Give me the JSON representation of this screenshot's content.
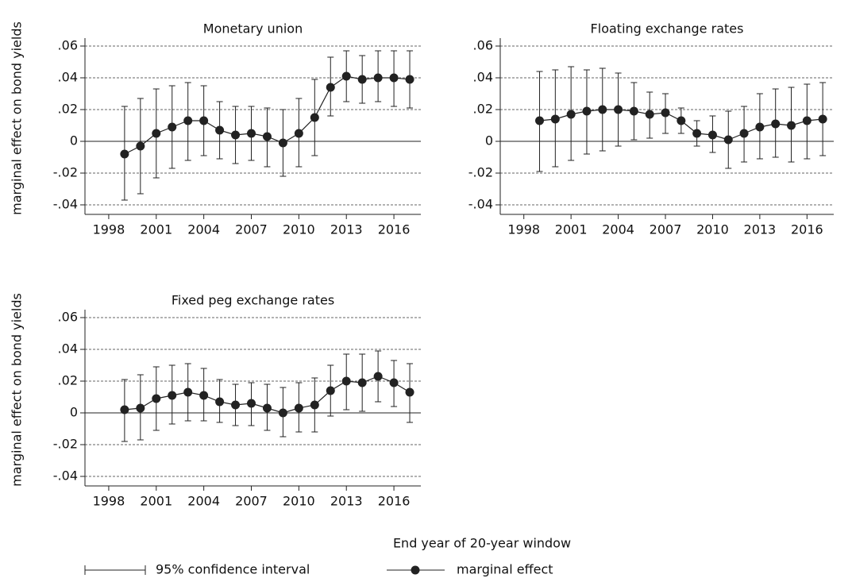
{
  "chart_data": [
    {
      "type": "errorbar",
      "title": "Monetary union",
      "ylabel": "marginal effect on bond yields",
      "color": "#222222",
      "x": [
        1999,
        2000,
        2001,
        2002,
        2003,
        2004,
        2005,
        2006,
        2007,
        2008,
        2009,
        2010,
        2011,
        2012,
        2013,
        2014,
        2015,
        2016,
        2017
      ],
      "values": [
        -0.008,
        -0.003,
        0.005,
        0.009,
        0.013,
        0.013,
        0.007,
        0.004,
        0.005,
        0.003,
        -0.001,
        0.005,
        0.015,
        0.034,
        0.041,
        0.039,
        0.04,
        0.04,
        0.039
      ],
      "upper": [
        0.022,
        0.027,
        0.033,
        0.035,
        0.037,
        0.035,
        0.025,
        0.022,
        0.022,
        0.021,
        0.02,
        0.027,
        0.039,
        0.053,
        0.057,
        0.054,
        0.057,
        0.057,
        0.057
      ],
      "lower": [
        -0.037,
        -0.033,
        -0.023,
        -0.017,
        -0.012,
        -0.009,
        -0.011,
        -0.014,
        -0.012,
        -0.016,
        -0.022,
        -0.016,
        -0.009,
        0.016,
        0.025,
        0.024,
        0.025,
        0.022,
        0.021
      ],
      "xlim": [
        1996.5,
        2017.7
      ],
      "ylim": [
        -0.046,
        0.065
      ],
      "xticks": [
        1998,
        2001,
        2004,
        2007,
        2010,
        2013,
        2016
      ],
      "yticks": [
        {
          "value": 0.06,
          "label": ".06"
        },
        {
          "value": 0.04,
          "label": ".04"
        },
        {
          "value": 0.02,
          "label": ".02"
        },
        0,
        {
          "value": -0.02,
          "label": "-.02"
        },
        {
          "value": -0.04,
          "label": "-.04"
        }
      ],
      "grid": true,
      "refline": 0
    },
    {
      "type": "errorbar",
      "title": "Floating exchange rates",
      "color": "#222222",
      "x": [
        1999,
        2000,
        2001,
        2002,
        2003,
        2004,
        2005,
        2006,
        2007,
        2008,
        2009,
        2010,
        2011,
        2012,
        2013,
        2014,
        2015,
        2016,
        2017
      ],
      "values": [
        0.013,
        0.014,
        0.017,
        0.019,
        0.02,
        0.02,
        0.019,
        0.017,
        0.018,
        0.013,
        0.005,
        0.004,
        0.001,
        0.005,
        0.009,
        0.011,
        0.01,
        0.013,
        0.014
      ],
      "upper": [
        0.044,
        0.045,
        0.047,
        0.045,
        0.046,
        0.043,
        0.037,
        0.031,
        0.03,
        0.021,
        0.013,
        0.016,
        0.019,
        0.022,
        0.03,
        0.033,
        0.034,
        0.036,
        0.037
      ],
      "lower": [
        -0.019,
        -0.016,
        -0.012,
        -0.008,
        -0.006,
        -0.003,
        0.001,
        0.002,
        0.005,
        0.005,
        -0.003,
        -0.007,
        -0.017,
        -0.013,
        -0.011,
        -0.01,
        -0.013,
        -0.011,
        -0.009
      ],
      "xlim": [
        1996.5,
        2017.7
      ],
      "ylim": [
        -0.046,
        0.065
      ],
      "xticks": [
        1998,
        2001,
        2004,
        2007,
        2010,
        2013,
        2016
      ],
      "yticks": [
        {
          "value": 0.06,
          "label": ".06"
        },
        {
          "value": 0.04,
          "label": ".04"
        },
        {
          "value": 0.02,
          "label": ".02"
        },
        0,
        {
          "value": -0.02,
          "label": "-.02"
        },
        {
          "value": -0.04,
          "label": "-.04"
        }
      ],
      "grid": true,
      "refline": 0
    },
    {
      "type": "errorbar",
      "title": "Fixed peg exchange rates",
      "ylabel": "marginal effect on bond yields",
      "color": "#222222",
      "x": [
        1999,
        2000,
        2001,
        2002,
        2003,
        2004,
        2005,
        2006,
        2007,
        2008,
        2009,
        2010,
        2011,
        2012,
        2013,
        2014,
        2015,
        2016,
        2017
      ],
      "values": [
        0.002,
        0.003,
        0.009,
        0.011,
        0.013,
        0.011,
        0.007,
        0.005,
        0.006,
        0.003,
        0.0,
        0.003,
        0.005,
        0.014,
        0.02,
        0.019,
        0.023,
        0.019,
        0.013
      ],
      "upper": [
        0.021,
        0.024,
        0.029,
        0.03,
        0.031,
        0.028,
        0.021,
        0.018,
        0.019,
        0.018,
        0.016,
        0.019,
        0.022,
        0.03,
        0.037,
        0.037,
        0.039,
        0.033,
        0.031
      ],
      "lower": [
        -0.018,
        -0.017,
        -0.011,
        -0.007,
        -0.005,
        -0.005,
        -0.006,
        -0.008,
        -0.008,
        -0.011,
        -0.015,
        -0.012,
        -0.012,
        -0.002,
        0.002,
        0.001,
        0.007,
        0.004,
        -0.006
      ],
      "xlim": [
        1996.5,
        2017.7
      ],
      "ylim": [
        -0.046,
        0.065
      ],
      "xticks": [
        1998,
        2001,
        2004,
        2007,
        2010,
        2013,
        2016
      ],
      "yticks": [
        {
          "value": 0.06,
          "label": ".06"
        },
        {
          "value": 0.04,
          "label": ".04"
        },
        {
          "value": 0.02,
          "label": ".02"
        },
        0,
        {
          "value": -0.02,
          "label": "-.02"
        },
        {
          "value": -0.04,
          "label": "-.04"
        }
      ],
      "grid": true,
      "refline": 0
    }
  ],
  "xlabel": "End year of 20-year window",
  "legend": [
    "95% confidence interval",
    "marginal effect"
  ]
}
